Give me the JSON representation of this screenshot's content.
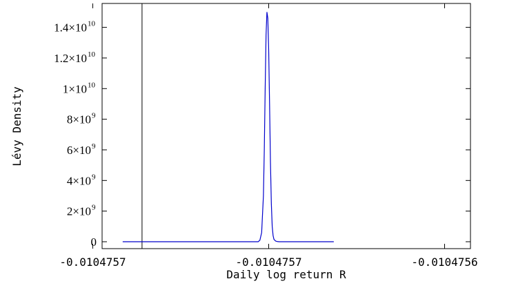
{
  "chart_data": {
    "type": "line",
    "xlabel": "Daily log return R",
    "ylabel": "Lévy Density",
    "x_ticks": [
      {
        "value": -0.01047568,
        "label": "-0.0104757"
      },
      {
        "value": -0.01047567,
        "label": "-0.0104757"
      },
      {
        "value": -0.01047566,
        "label": "-0.0104756"
      }
    ],
    "y_ticks": [
      {
        "value": 0,
        "label": "0"
      },
      {
        "value": 2000000000,
        "coef": "2",
        "exp": "9"
      },
      {
        "value": 4000000000,
        "coef": "4",
        "exp": "9"
      },
      {
        "value": 6000000000,
        "coef": "6",
        "exp": "9"
      },
      {
        "value": 8000000000,
        "coef": "8",
        "exp": "9"
      },
      {
        "value": 10000000000,
        "coef": "1",
        "exp": "10"
      },
      {
        "value": 12000000000,
        "coef": "1.2",
        "exp": "10"
      },
      {
        "value": 14000000000,
        "coef": "1.4",
        "exp": "10"
      }
    ],
    "xlim": [
      -0.010475679,
      -0.010475659
    ],
    "ylim": [
      0,
      15200000000
    ],
    "vertical_line_x": -0.0104756772,
    "series": [
      {
        "color": "#0000cc",
        "x": [
          -0.0104756783,
          -0.0104756706,
          -0.0104756705,
          -0.0104756704,
          -0.0104756703,
          -0.01047567025,
          -0.0104756702,
          -0.01047567015,
          -0.0104756701,
          -0.01047567005,
          -0.01047567,
          -0.01047566995,
          -0.0104756699,
          -0.01047566985,
          -0.0104756698,
          -0.01047566975,
          -0.0104756697,
          -0.0104756696,
          -0.0104756695,
          -0.0104756694,
          -0.0104756663
        ],
        "values": [
          0,
          0,
          100000000,
          600000000,
          3000000000,
          6000000000,
          10000000000,
          13500000000,
          15000000000,
          14600000000,
          12500000000,
          9000000000,
          5200000000,
          2500000000,
          1000000000,
          400000000,
          150000000,
          40000000,
          10000000,
          0,
          0
        ]
      }
    ],
    "grid": false,
    "frame": true
  }
}
